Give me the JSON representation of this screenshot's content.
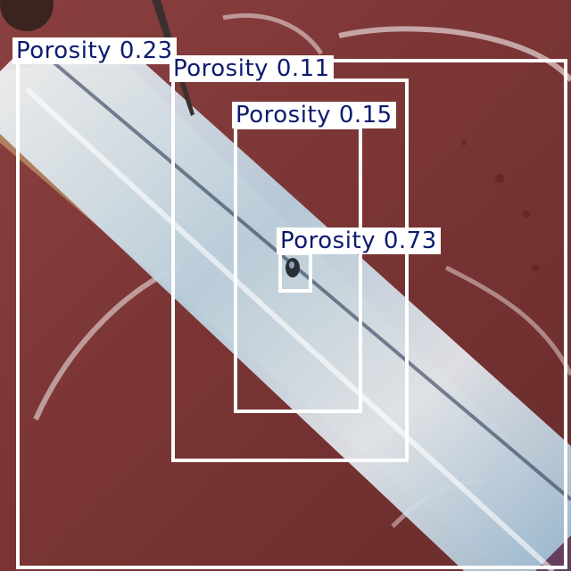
{
  "detections": [
    {
      "class_name": "Porosity",
      "confidence": "0.23"
    },
    {
      "class_name": "Porosity",
      "confidence": "0.11"
    },
    {
      "class_name": "Porosity",
      "confidence": "0.15"
    },
    {
      "class_name": "Porosity",
      "confidence": "0.73"
    }
  ],
  "colors": {
    "box_stroke": "#ffffff",
    "label_background": "#ffffff",
    "label_text": "#0d1b6e",
    "metal_surface": "#7a3535",
    "weld_bead": "#cfe3f0"
  }
}
